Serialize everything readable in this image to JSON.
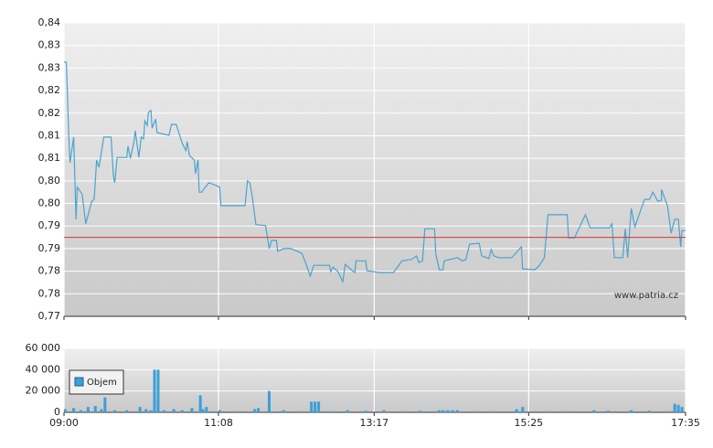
{
  "watermark": "www.patria.cz",
  "chart_data": [
    {
      "type": "line",
      "x": [
        "09:00",
        "09:02",
        "09:04",
        "09:05",
        "09:08",
        "09:10",
        "09:11",
        "09:15",
        "09:18",
        "09:23",
        "09:25",
        "09:27",
        "09:29",
        "09:33",
        "09:39",
        "09:41",
        "09:42",
        "09:44",
        "09:52",
        "09:53",
        "09:55",
        "09:58",
        "09:59",
        "10:02",
        "10:04",
        "10:06",
        "10:07",
        "10:09",
        "10:10",
        "10:12",
        "10:13",
        "10:16",
        "10:17",
        "10:27",
        "10:29",
        "10:33",
        "10:38",
        "10:41",
        "10:42",
        "10:44",
        "10:48",
        "10:49",
        "10:51",
        "10:52",
        "10:54",
        "11:00",
        "11:06",
        "11:09",
        "11:10",
        "11:30",
        "11:32",
        "11:34",
        "11:36",
        "11:39",
        "11:47",
        "11:50",
        "11:52",
        "11:56",
        "11:57",
        "12:02",
        "12:08",
        "12:17",
        "12:21",
        "12:24",
        "12:27",
        "12:40",
        "12:41",
        "12:43",
        "12:47",
        "12:51",
        "12:53",
        "12:59",
        "13:01",
        "13:02",
        "13:10",
        "13:11",
        "13:22",
        "13:33",
        "13:40",
        "13:48",
        "13:52",
        "13:54",
        "13:57",
        "13:59",
        "14:07",
        "14:08",
        "14:11",
        "14:14",
        "14:15",
        "14:26",
        "14:30",
        "14:33",
        "14:36",
        "14:44",
        "14:46",
        "14:52",
        "14:54",
        "14:56",
        "15:00",
        "15:11",
        "15:19",
        "15:20",
        "15:30",
        "15:34",
        "15:38",
        "15:40",
        "15:41",
        "15:57",
        "15:58",
        "16:03",
        "16:12",
        "16:16",
        "16:32",
        "16:34",
        "16:36",
        "16:43",
        "16:45",
        "16:47",
        "16:50",
        "16:53",
        "17:01",
        "17:05",
        "17:08",
        "17:12",
        "17:15",
        "17:15",
        "17:20",
        "17:23",
        "17:26",
        "17:29",
        "17:31",
        "17:32",
        "17:35"
      ],
      "series": [
        {
          "color": "#4ba3cf",
          "values": [
            0.8263,
            0.8263,
            0.8097,
            0.804,
            0.8097,
            0.7915,
            0.7986,
            0.7971,
            0.7905,
            0.7955,
            0.7959,
            0.8046,
            0.803,
            0.8097,
            0.8097,
            0.801,
            0.7996,
            0.8052,
            0.8052,
            0.8077,
            0.805,
            0.8087,
            0.8111,
            0.8052,
            0.8097,
            0.8093,
            0.8133,
            0.8123,
            0.8152,
            0.8156,
            0.8117,
            0.8137,
            0.8107,
            0.8101,
            0.8125,
            0.8125,
            0.8083,
            0.8067,
            0.8087,
            0.8056,
            0.8046,
            0.8016,
            0.8046,
            0.7975,
            0.7975,
            0.7996,
            0.799,
            0.7986,
            0.7945,
            0.7945,
            0.8,
            0.7996,
            0.7965,
            0.7903,
            0.7901,
            0.785,
            0.7868,
            0.7868,
            0.7844,
            0.785,
            0.785,
            0.784,
            0.7813,
            0.7789,
            0.7813,
            0.7813,
            0.7799,
            0.7809,
            0.7799,
            0.7777,
            0.7815,
            0.7801,
            0.7797,
            0.7823,
            0.7823,
            0.7801,
            0.7797,
            0.7797,
            0.7823,
            0.7826,
            0.7834,
            0.7819,
            0.7823,
            0.7894,
            0.7894,
            0.7838,
            0.7803,
            0.7803,
            0.7823,
            0.783,
            0.7823,
            0.7826,
            0.786,
            0.7862,
            0.7834,
            0.7828,
            0.7848,
            0.7834,
            0.783,
            0.783,
            0.7854,
            0.7805,
            0.7803,
            0.7813,
            0.783,
            0.7894,
            0.7925,
            0.7925,
            0.7874,
            0.7874,
            0.7925,
            0.7896,
            0.7896,
            0.7905,
            0.783,
            0.783,
            0.7894,
            0.783,
            0.7939,
            0.7898,
            0.7959,
            0.7959,
            0.7975,
            0.7955,
            0.7957,
            0.7981,
            0.7945,
            0.7884,
            0.7915,
            0.7915,
            0.7854,
            0.789,
            0.789
          ]
        }
      ],
      "xlim": [
        "09:00",
        "17:35"
      ],
      "ylim": [
        0.77,
        0.835
      ],
      "yticks": [
        {
          "value": 0.77,
          "label": "0,77"
        },
        {
          "value": 0.775,
          "label": "0,78"
        },
        {
          "value": 0.78,
          "label": "0,78"
        },
        {
          "value": 0.785,
          "label": "0,79"
        },
        {
          "value": 0.79,
          "label": "0,79"
        },
        {
          "value": 0.795,
          "label": "0,80"
        },
        {
          "value": 0.8,
          "label": "0,80"
        },
        {
          "value": 0.805,
          "label": "0,81"
        },
        {
          "value": 0.81,
          "label": "0,81"
        },
        {
          "value": 0.815,
          "label": "0,82"
        },
        {
          "value": 0.82,
          "label": "0,82"
        },
        {
          "value": 0.825,
          "label": "0,83"
        },
        {
          "value": 0.83,
          "label": "0,83"
        },
        {
          "value": 0.835,
          "label": "0,84"
        }
      ],
      "reference_line": 0.7875,
      "reference_color": "#e03030",
      "grid": true
    },
    {
      "type": "bar",
      "x": [
        "09:01",
        "09:08",
        "09:14",
        "09:20",
        "09:26",
        "09:31",
        "09:34",
        "09:42",
        "09:52",
        "10:03",
        "10:08",
        "10:12",
        "10:15",
        "10:18",
        "10:23",
        "10:31",
        "10:38",
        "10:46",
        "10:53",
        "10:55",
        "10:58",
        "11:09",
        "11:24",
        "11:38",
        "11:41",
        "11:50",
        "12:02",
        "12:17",
        "12:25",
        "12:28",
        "12:31",
        "12:40",
        "12:55",
        "13:10",
        "13:25",
        "13:40",
        "13:55",
        "14:11",
        "14:14",
        "14:18",
        "14:22",
        "14:26",
        "14:41",
        "14:56",
        "15:15",
        "15:20",
        "15:41",
        "15:57",
        "16:19",
        "16:31",
        "16:50",
        "17:05",
        "17:20",
        "17:26",
        "17:29",
        "17:32"
      ],
      "series": [
        {
          "name": "Objem",
          "color": "#3b9fd8",
          "values": [
            3000,
            4000,
            2000,
            5000,
            6000,
            3000,
            14000,
            2000,
            2000,
            5000,
            3000,
            2000,
            40000,
            40000,
            2000,
            3000,
            2000,
            4000,
            16000,
            3000,
            5000,
            2000,
            1000,
            3000,
            4000,
            20000,
            2000,
            1000,
            10000,
            10000,
            10000,
            1000,
            2000,
            1500,
            2000,
            1000,
            1500,
            2000,
            2000,
            2000,
            2000,
            2000,
            1000,
            1000,
            3000,
            5000,
            1000,
            1000,
            2000,
            1500,
            2000,
            1500,
            1000,
            8000,
            7000,
            5000
          ]
        }
      ],
      "xlim": [
        "09:00",
        "17:35"
      ],
      "xticks": [
        "09:00",
        "11:08",
        "13:17",
        "15:25",
        "17:35"
      ],
      "ylim": [
        0,
        60000
      ],
      "yticks": [
        0,
        {
          "value": 20000,
          "label": "20 000"
        },
        {
          "value": 40000,
          "label": "40 000"
        },
        {
          "value": 60000,
          "label": "60 000"
        }
      ],
      "legend": "upper left",
      "grid": true
    }
  ]
}
